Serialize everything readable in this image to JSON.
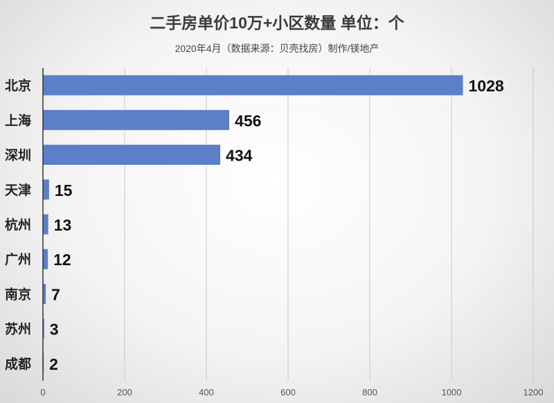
{
  "chart_data": {
    "type": "bar",
    "orientation": "horizontal",
    "title": "二手房单价10万+小区数量 单位：个",
    "subtitle": "2020年4月（数据来源：贝壳找房）制作/镁地产",
    "categories": [
      "北京",
      "上海",
      "深圳",
      "天津",
      "杭州",
      "广州",
      "南京",
      "苏州",
      "成都"
    ],
    "values": [
      1028,
      456,
      434,
      15,
      13,
      12,
      7,
      3,
      2
    ],
    "xlim": [
      0,
      1200
    ],
    "xticks": [
      0,
      200,
      400,
      600,
      800,
      1000,
      1200
    ],
    "grid": true,
    "colors": {
      "bar": "#5b80c8",
      "grid": "#c8c8c8",
      "axis": "#333333"
    }
  }
}
